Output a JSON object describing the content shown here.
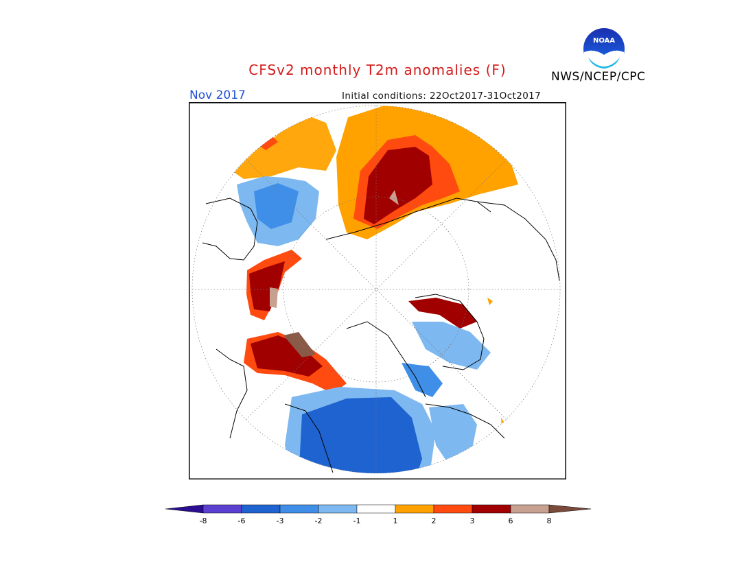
{
  "header": {
    "title": "CFSv2 monthly T2m anomalies (F)",
    "month": "Nov 2017",
    "initial_conditions": "Initial conditions: 22Oct2017-31Oct2017",
    "agency": "NWS/NCEP/CPC",
    "logo_text": "NOAA"
  },
  "colors": {
    "title": "#d41a1a",
    "month": "#1f4fd6"
  },
  "legend": {
    "labels": [
      "-8",
      "-6",
      "-3",
      "-2",
      "-1",
      "1",
      "2",
      "3",
      "6",
      "8"
    ],
    "colors": [
      "#2b0d91",
      "#5a3fd0",
      "#1f63d0",
      "#3f8fe8",
      "#7db8f0",
      "#ffffff",
      "#ffa200",
      "#ff4a10",
      "#a00000",
      "#c8a090",
      "#7a4a3a"
    ]
  }
}
